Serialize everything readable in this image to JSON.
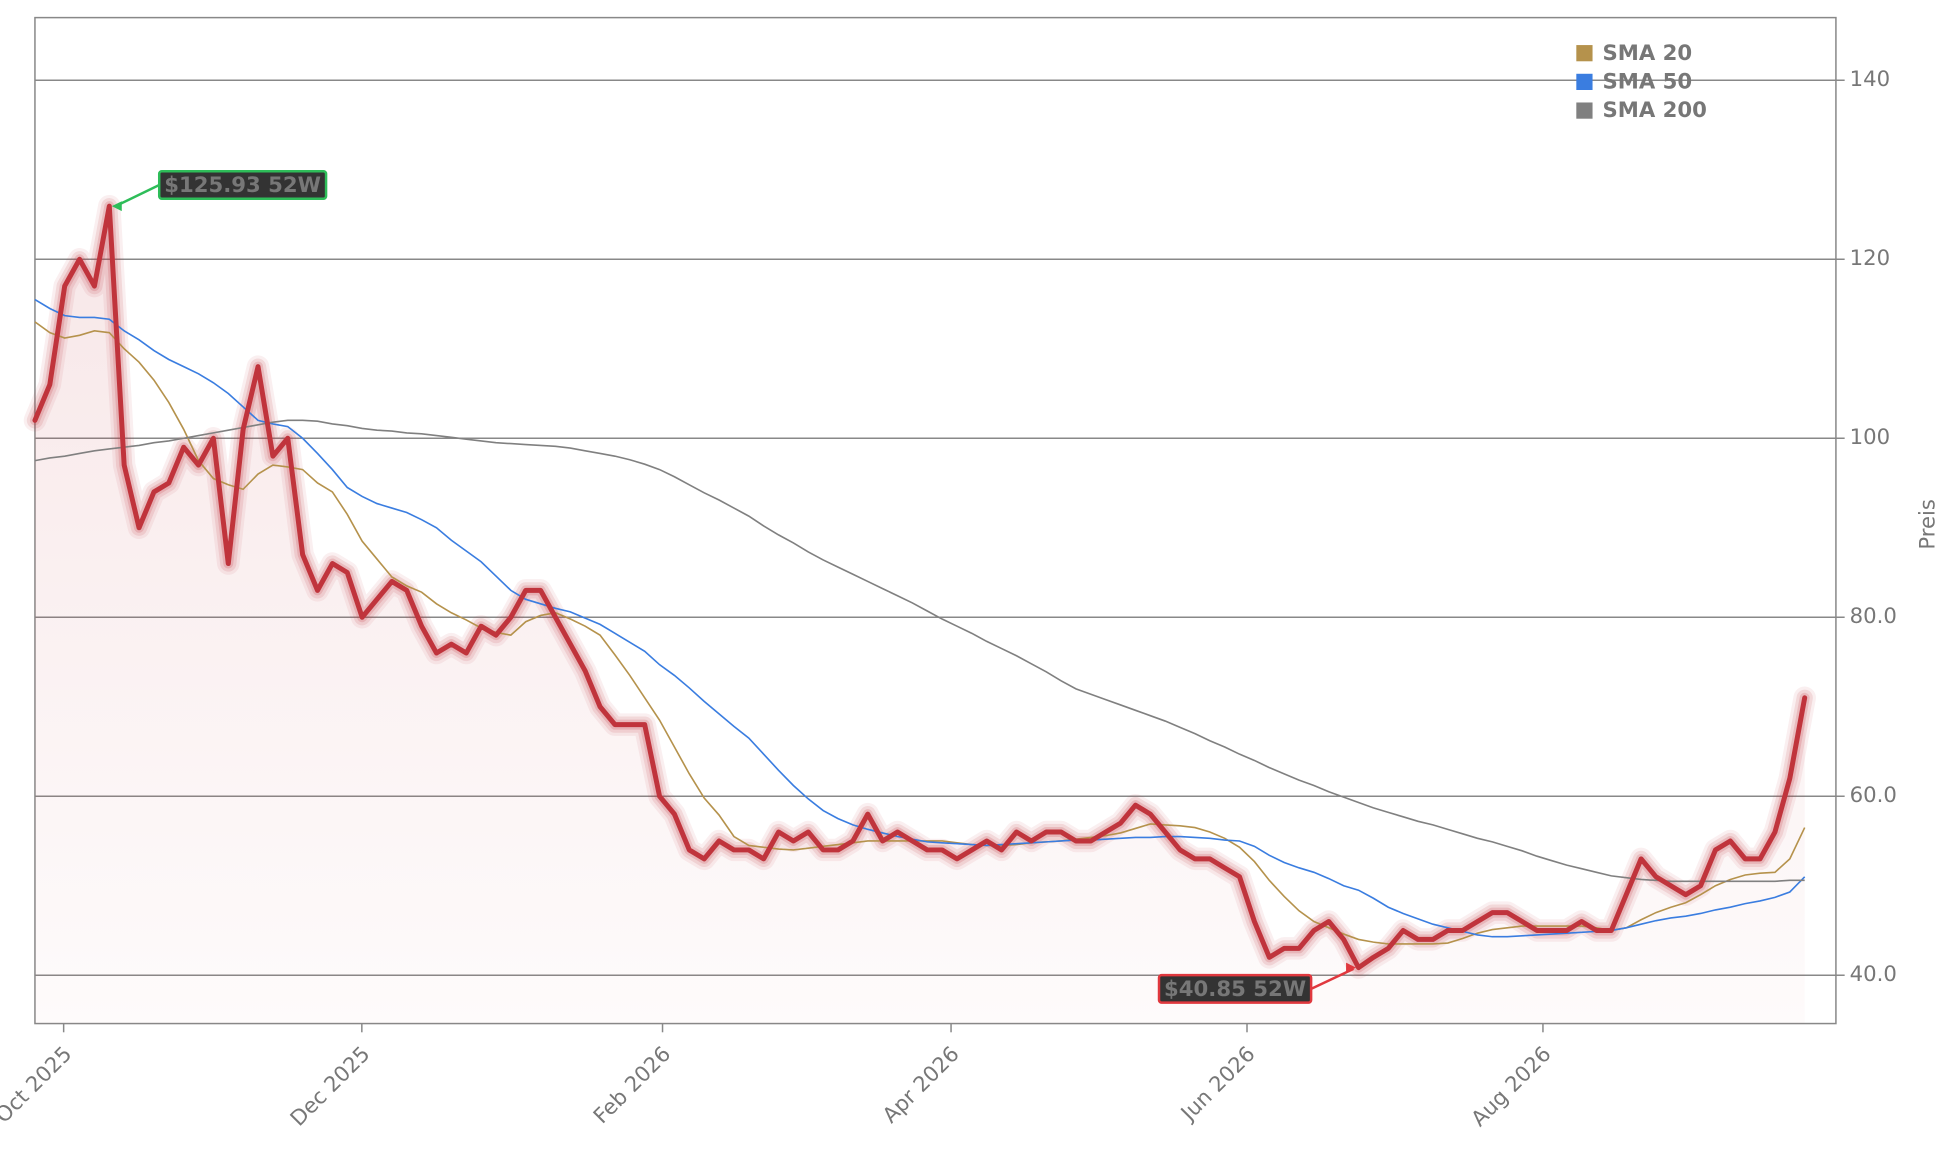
{
  "chart_data": {
    "type": "line",
    "ylabel": "Preis",
    "xlim": [
      0,
      121.1
    ],
    "xticks": [
      {
        "value": 1.93,
        "label": "Oct 2025"
      },
      {
        "value": 21.98,
        "label": "Dec 2025"
      },
      {
        "value": 42.2,
        "label": "Feb 2026"
      },
      {
        "value": 61.6,
        "label": "Apr 2026"
      },
      {
        "value": 81.5,
        "label": "Jun 2026"
      },
      {
        "value": 101.4,
        "label": "Aug 2026"
      }
    ],
    "ylim": [
      34.6,
      147
    ],
    "yticks": [
      {
        "value": 40,
        "label": "40.0"
      },
      {
        "value": 60,
        "label": "60.0"
      },
      {
        "value": 80,
        "label": "80.0"
      },
      100,
      120,
      140
    ],
    "grid": "y",
    "legend": "upper right",
    "series": [
      {
        "color": "#c0343c",
        "values": [
          102,
          106,
          117,
          120,
          117,
          125.93,
          97,
          90,
          94,
          95,
          99,
          97,
          100,
          86,
          101,
          108,
          98,
          100,
          87,
          83,
          86,
          85,
          80,
          82,
          84,
          83,
          79,
          76,
          77,
          76,
          79,
          78,
          80,
          83,
          83,
          80,
          77,
          74,
          70,
          68,
          68,
          68,
          60,
          58,
          54,
          53,
          55,
          54,
          54,
          53,
          56,
          55,
          56,
          54,
          54,
          55,
          58,
          55,
          56,
          55,
          54,
          54,
          53,
          54,
          55,
          54,
          56,
          55,
          56,
          56,
          55,
          55,
          56,
          57,
          59,
          58,
          56,
          54,
          53,
          53,
          52,
          51,
          46,
          42,
          43,
          43,
          45,
          46,
          44,
          40.85,
          42,
          43,
          45,
          44,
          44,
          45,
          45,
          46,
          47,
          47,
          46,
          45,
          45,
          45,
          46,
          45,
          45,
          49,
          53,
          51,
          50,
          49,
          50,
          54,
          55,
          53,
          53,
          56,
          62,
          71
        ]
      },
      {
        "name": "SMA 20",
        "color": "#b5924c",
        "values": [
          113,
          111.8,
          111.2,
          111.5,
          112,
          111.8,
          110,
          108.5,
          106.5,
          104,
          101,
          97.5,
          95.5,
          94.8,
          94.3,
          96,
          97,
          96.8,
          96.5,
          95,
          94,
          91.5,
          88.5,
          86.5,
          84.5,
          83.5,
          82.8,
          81.5,
          80.5,
          79.7,
          78.8,
          78.3,
          78,
          79.5,
          80.2,
          80.5,
          79.8,
          79,
          78,
          75.8,
          73.5,
          71,
          68.5,
          65.5,
          62.5,
          59.8,
          57.9,
          55.5,
          54.5,
          54.3,
          54.1,
          54,
          54.2,
          54.4,
          54.6,
          54.8,
          55,
          55,
          55,
          55,
          55,
          55,
          54.8,
          54.6,
          54.5,
          54.5,
          54.6,
          54.8,
          54.9,
          55,
          55.2,
          55.4,
          55.6,
          55.9,
          56.4,
          56.9,
          56.8,
          56.7,
          56.5,
          56,
          55.3,
          54.3,
          52.7,
          50.6,
          48.8,
          47.2,
          46,
          45.3,
          44.6,
          44,
          43.7,
          43.5,
          43.5,
          43.5,
          43.5,
          43.6,
          44.1,
          44.7,
          45.1,
          45.3,
          45.5,
          45.5,
          45.5,
          45.5,
          45.5,
          45.3,
          45,
          45.3,
          46.2,
          47,
          47.6,
          48.1,
          49,
          50,
          50.7,
          51.2,
          51.4,
          51.5,
          53,
          56.5
        ]
      },
      {
        "name": "SMA 50",
        "color": "#3a7de0",
        "values": [
          115.5,
          114.5,
          113.7,
          113.5,
          113.5,
          113.3,
          112,
          111,
          109.8,
          108.8,
          108,
          107.2,
          106.2,
          105,
          103.5,
          102,
          101.6,
          101.3,
          100,
          98.3,
          96.5,
          94.5,
          93.5,
          92.7,
          92.2,
          91.7,
          90.9,
          90,
          88.6,
          87.4,
          86.2,
          84.6,
          83,
          82,
          81.5,
          81,
          80.6,
          79.9,
          79.2,
          78.2,
          77.2,
          76.2,
          74.7,
          73.5,
          72.1,
          70.6,
          69.2,
          67.8,
          66.5,
          64.7,
          62.9,
          61.2,
          59.7,
          58.4,
          57.5,
          56.8,
          56.3,
          55.9,
          55.5,
          55.2,
          54.9,
          54.8,
          54.7,
          54.6,
          54.5,
          54.6,
          54.7,
          54.8,
          54.9,
          55,
          55.1,
          55.1,
          55.2,
          55.3,
          55.4,
          55.4,
          55.5,
          55.5,
          55.4,
          55.3,
          55.1,
          55,
          54.4,
          53.4,
          52.6,
          52,
          51.5,
          50.8,
          50,
          49.5,
          48.6,
          47.6,
          46.9,
          46.3,
          45.7,
          45.3,
          44.9,
          44.5,
          44.3,
          44.3,
          44.4,
          44.5,
          44.6,
          44.7,
          44.8,
          44.9,
          45,
          45.3,
          45.7,
          46.1,
          46.4,
          46.6,
          46.9,
          47.3,
          47.6,
          48,
          48.3,
          48.7,
          49.3,
          51
        ]
      },
      {
        "name": "SMA 200",
        "color": "#808080",
        "values": [
          97.5,
          97.8,
          98,
          98.3,
          98.6,
          98.8,
          99,
          99.2,
          99.5,
          99.7,
          100,
          100.3,
          100.6,
          100.9,
          101.2,
          101.5,
          101.8,
          102,
          102,
          101.9,
          101.6,
          101.4,
          101.1,
          100.9,
          100.8,
          100.6,
          100.5,
          100.3,
          100.1,
          99.9,
          99.7,
          99.5,
          99.4,
          99.3,
          99.2,
          99.1,
          98.9,
          98.6,
          98.3,
          98,
          97.6,
          97.1,
          96.5,
          95.7,
          94.8,
          93.9,
          93.1,
          92.2,
          91.3,
          90.2,
          89.2,
          88.3,
          87.3,
          86.4,
          85.6,
          84.8,
          84,
          83.2,
          82.4,
          81.6,
          80.7,
          79.8,
          79,
          78.2,
          77.3,
          76.5,
          75.7,
          74.8,
          73.9,
          72.9,
          72,
          71.4,
          70.8,
          70.2,
          69.6,
          69,
          68.4,
          67.7,
          67,
          66.2,
          65.5,
          64.7,
          64,
          63.2,
          62.5,
          61.8,
          61.2,
          60.5,
          59.9,
          59.3,
          58.7,
          58.2,
          57.7,
          57.2,
          56.8,
          56.3,
          55.8,
          55.3,
          54.9,
          54.4,
          53.9,
          53.3,
          52.8,
          52.3,
          51.9,
          51.5,
          51.1,
          50.9,
          50.7,
          50.6,
          50.5,
          50.5,
          50.5,
          50.5,
          50.5,
          50.5,
          50.5,
          50.5,
          50.6,
          50.6
        ]
      }
    ],
    "annotations": [
      {
        "text": "$125.93 52W",
        "at": "max",
        "color": "#2ebd59"
      },
      {
        "text": "$40.85 52W",
        "at": "min",
        "color": "#e0383e"
      }
    ]
  }
}
